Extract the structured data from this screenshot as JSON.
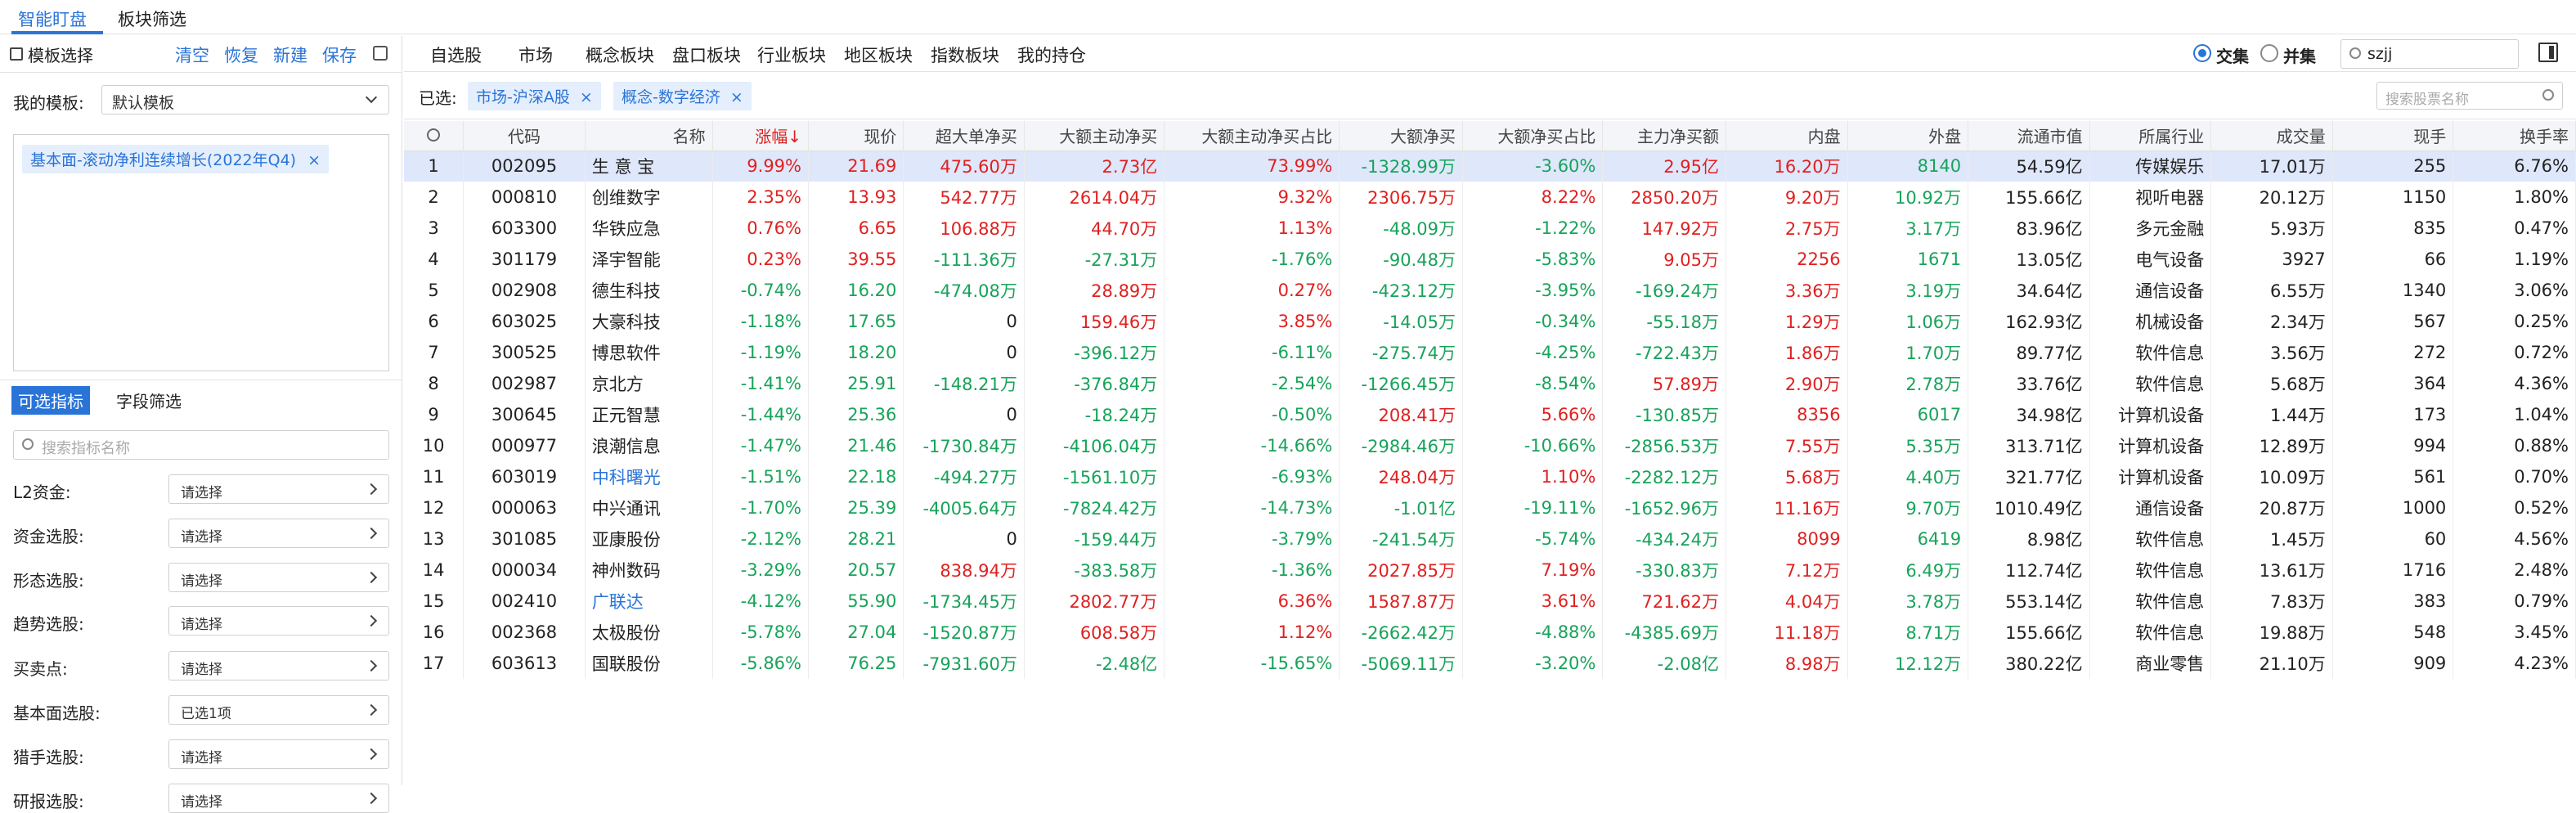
{
  "top_tabs": [
    {
      "label": "智能盯盘",
      "active": true
    },
    {
      "label": "板块筛选",
      "active": false
    }
  ],
  "left": {
    "template_header": "模板选择",
    "actions": {
      "clear": "清空",
      "restore": "恢复",
      "new": "新建",
      "save": "保存"
    },
    "my_template_label": "我的模板:",
    "my_template_value": "默认模板",
    "chips": [
      "基本面-滚动净利连续增长(2022年Q4)"
    ],
    "subtabs": [
      {
        "label": "可选指标",
        "active": true
      },
      {
        "label": "字段筛选",
        "active": false
      }
    ],
    "search_placeholder": "搜索指标名称",
    "filters": [
      {
        "label": "L2资金:",
        "value": "请选择"
      },
      {
        "label": "资金选股:",
        "value": "请选择"
      },
      {
        "label": "形态选股:",
        "value": "请选择"
      },
      {
        "label": "趋势选股:",
        "value": "请选择"
      },
      {
        "label": "买卖点:",
        "value": "请选择"
      },
      {
        "label": "基本面选股:",
        "value": "已选1项"
      },
      {
        "label": "猎手选股:",
        "value": "请选择"
      },
      {
        "label": "研报选股:",
        "value": "请选择"
      }
    ]
  },
  "nav": {
    "items": [
      "自选股",
      "市场",
      "概念板块",
      "盘口板块",
      "行业板块",
      "地区板块",
      "指数板块",
      "我的持仓"
    ],
    "mode_intersection": "交集",
    "mode_union": "并集",
    "search_value": "szjj"
  },
  "filter": {
    "label": "已选:",
    "chips": [
      "市场-沪深A股",
      "概念-数字经济"
    ],
    "stock_search_placeholder": "搜索股票名称"
  },
  "colors": {
    "up": "#e02020",
    "down": "#17a35a",
    "accent": "#2a74d8",
    "selected_row": "#dfe7fb"
  },
  "table": {
    "headers": [
      "",
      "代码",
      "名称",
      "涨幅↓",
      "现价",
      "超大单净买",
      "大额主动净买",
      "大额主动净买占比",
      "大额净买",
      "大额净买占比",
      "主力净买额",
      "内盘",
      "外盘",
      "流通市值",
      "所属行业",
      "成交量",
      "现手",
      "换手率"
    ],
    "rows": [
      [
        "1",
        "002095",
        "生 意 宝",
        "9.99%",
        "21.69",
        "475.60万",
        "2.73亿",
        "73.99%",
        "-1328.99万",
        "-3.60%",
        "2.95亿",
        "16.20万",
        "8140",
        "54.59亿",
        "传媒娱乐",
        "17.01万",
        "255",
        "6.76%"
      ],
      [
        "2",
        "000810",
        "创维数字",
        "2.35%",
        "13.93",
        "542.77万",
        "2614.04万",
        "9.32%",
        "2306.75万",
        "8.22%",
        "2850.20万",
        "9.20万",
        "10.92万",
        "155.66亿",
        "视听电器",
        "20.12万",
        "1150",
        "1.80%"
      ],
      [
        "3",
        "603300",
        "华铁应急",
        "0.76%",
        "6.65",
        "106.88万",
        "44.70万",
        "1.13%",
        "-48.09万",
        "-1.22%",
        "147.92万",
        "2.75万",
        "3.17万",
        "83.96亿",
        "多元金融",
        "5.93万",
        "835",
        "0.47%"
      ],
      [
        "4",
        "301179",
        "泽宇智能",
        "0.23%",
        "39.55",
        "-111.36万",
        "-27.31万",
        "-1.76%",
        "-90.48万",
        "-5.83%",
        "9.05万",
        "2256",
        "1671",
        "13.05亿",
        "电气设备",
        "3927",
        "66",
        "1.19%"
      ],
      [
        "5",
        "002908",
        "德生科技",
        "-0.74%",
        "16.20",
        "-474.08万",
        "28.89万",
        "0.27%",
        "-423.12万",
        "-3.95%",
        "-169.24万",
        "3.36万",
        "3.19万",
        "34.64亿",
        "通信设备",
        "6.55万",
        "1340",
        "3.06%"
      ],
      [
        "6",
        "603025",
        "大豪科技",
        "-1.18%",
        "17.65",
        "0",
        "159.46万",
        "3.85%",
        "-14.05万",
        "-0.34%",
        "-55.18万",
        "1.29万",
        "1.06万",
        "162.93亿",
        "机械设备",
        "2.34万",
        "567",
        "0.25%"
      ],
      [
        "7",
        "300525",
        "博思软件",
        "-1.19%",
        "18.20",
        "0",
        "-396.12万",
        "-6.11%",
        "-275.74万",
        "-4.25%",
        "-722.43万",
        "1.86万",
        "1.70万",
        "89.77亿",
        "软件信息",
        "3.56万",
        "272",
        "0.72%"
      ],
      [
        "8",
        "002987",
        "京北方",
        "-1.41%",
        "25.91",
        "-148.21万",
        "-376.84万",
        "-2.54%",
        "-1266.45万",
        "-8.54%",
        "57.89万",
        "2.90万",
        "2.78万",
        "33.76亿",
        "软件信息",
        "5.68万",
        "364",
        "4.36%"
      ],
      [
        "9",
        "300645",
        "正元智慧",
        "-1.44%",
        "25.36",
        "0",
        "-18.24万",
        "-0.50%",
        "208.41万",
        "5.66%",
        "-130.85万",
        "8356",
        "6017",
        "34.98亿",
        "计算机设备",
        "1.44万",
        "173",
        "1.04%"
      ],
      [
        "10",
        "000977",
        "浪潮信息",
        "-1.47%",
        "21.46",
        "-1730.84万",
        "-4106.04万",
        "-14.66%",
        "-2984.46万",
        "-10.66%",
        "-2856.53万",
        "7.55万",
        "5.35万",
        "313.71亿",
        "计算机设备",
        "12.89万",
        "994",
        "0.88%"
      ],
      [
        "11",
        "603019",
        "中科曙光",
        "-1.51%",
        "22.18",
        "-494.27万",
        "-1561.10万",
        "-6.93%",
        "248.04万",
        "1.10%",
        "-2282.12万",
        "5.68万",
        "4.40万",
        "321.77亿",
        "计算机设备",
        "10.09万",
        "561",
        "0.70%"
      ],
      [
        "12",
        "000063",
        "中兴通讯",
        "-1.70%",
        "25.39",
        "-4005.64万",
        "-7824.42万",
        "-14.73%",
        "-1.01亿",
        "-19.11%",
        "-1652.96万",
        "11.16万",
        "9.70万",
        "1010.49亿",
        "通信设备",
        "20.87万",
        "1000",
        "0.52%"
      ],
      [
        "13",
        "301085",
        "亚康股份",
        "-2.12%",
        "28.21",
        "0",
        "-159.44万",
        "-3.79%",
        "-241.54万",
        "-5.74%",
        "-434.24万",
        "8099",
        "6419",
        "8.98亿",
        "软件信息",
        "1.45万",
        "60",
        "4.56%"
      ],
      [
        "14",
        "000034",
        "神州数码",
        "-3.29%",
        "20.57",
        "838.94万",
        "-383.58万",
        "-1.36%",
        "2027.85万",
        "7.19%",
        "-330.83万",
        "7.12万",
        "6.49万",
        "112.74亿",
        "软件信息",
        "13.61万",
        "1716",
        "2.48%"
      ],
      [
        "15",
        "002410",
        "广联达",
        "-4.12%",
        "55.90",
        "-1734.45万",
        "2802.77万",
        "6.36%",
        "1587.87万",
        "3.61%",
        "721.62万",
        "4.04万",
        "3.78万",
        "553.14亿",
        "软件信息",
        "7.83万",
        "383",
        "0.79%"
      ],
      [
        "16",
        "002368",
        "太极股份",
        "-5.78%",
        "27.04",
        "-1520.87万",
        "608.58万",
        "1.12%",
        "-2662.42万",
        "-4.88%",
        "-4385.69万",
        "11.18万",
        "8.71万",
        "155.66亿",
        "软件信息",
        "19.88万",
        "548",
        "3.45%"
      ],
      [
        "17",
        "603613",
        "国联股份",
        "-5.86%",
        "76.25",
        "-7931.60万",
        "-2.48亿",
        "-15.65%",
        "-5069.11万",
        "-3.20%",
        "-2.08亿",
        "8.98万",
        "12.12万",
        "380.22亿",
        "商业零售",
        "21.10万",
        "909",
        "4.23%"
      ]
    ],
    "highlight_name_rows": [
      10,
      14
    ]
  }
}
